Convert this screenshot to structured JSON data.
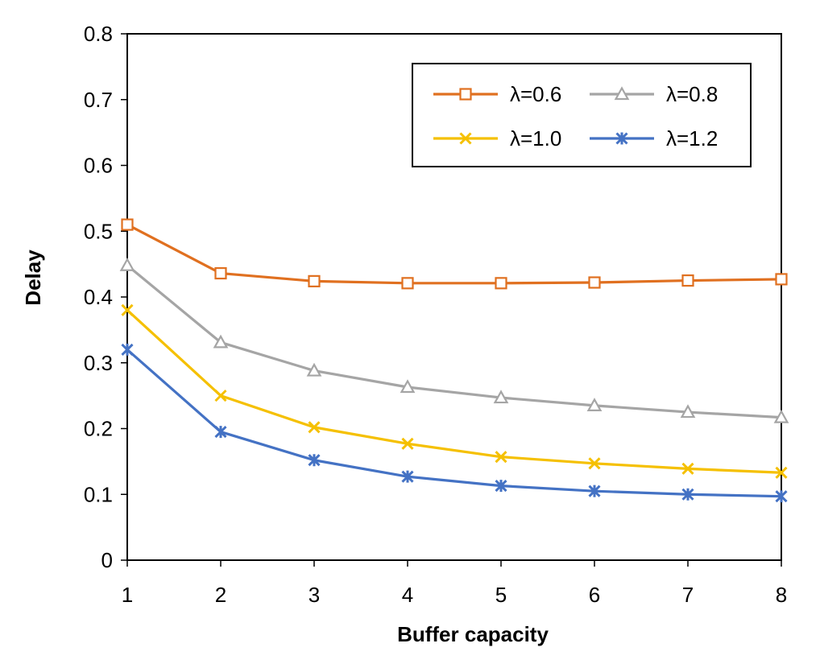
{
  "chart_data": {
    "type": "line",
    "title": "",
    "xlabel": "Buffer capacity",
    "ylabel": "Delay",
    "x": [
      1,
      2,
      3,
      4,
      5,
      6,
      7,
      8
    ],
    "xticks": [
      "1",
      "2",
      "3",
      "4",
      "5",
      "6",
      "7",
      "8"
    ],
    "ylim": [
      0,
      0.8
    ],
    "yticks": [
      "0",
      "0.1",
      "0.2",
      "0.3",
      "0.4",
      "0.5",
      "0.6",
      "0.7",
      "0.8"
    ],
    "grid": false,
    "legend_position": "top-right",
    "series": [
      {
        "name": "λ=0.6",
        "color": "#E07020",
        "marker": "square",
        "values": [
          0.51,
          0.436,
          0.424,
          0.421,
          0.421,
          0.422,
          0.425,
          0.427
        ]
      },
      {
        "name": "λ=0.8",
        "color": "#A5A5A5",
        "marker": "triangle",
        "values": [
          0.448,
          0.331,
          0.288,
          0.263,
          0.247,
          0.235,
          0.225,
          0.217
        ]
      },
      {
        "name": "λ=1.0",
        "color": "#F5C000",
        "marker": "x",
        "values": [
          0.38,
          0.25,
          0.202,
          0.177,
          0.157,
          0.147,
          0.139,
          0.133
        ]
      },
      {
        "name": "λ=1.2",
        "color": "#4472C4",
        "marker": "star",
        "values": [
          0.32,
          0.195,
          0.152,
          0.127,
          0.113,
          0.105,
          0.1,
          0.097
        ]
      }
    ]
  }
}
